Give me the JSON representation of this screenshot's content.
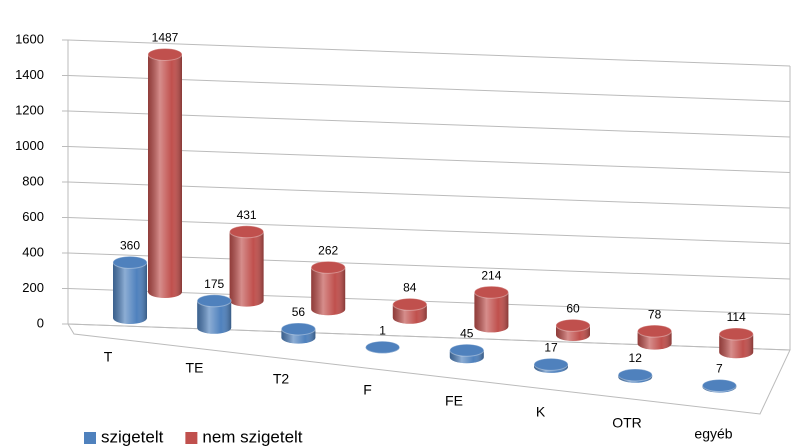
{
  "chart_data": {
    "type": "bar3d",
    "categories": [
      "T",
      "TE",
      "T2",
      "F",
      "FE",
      "K",
      "OTR",
      "egyéb"
    ],
    "series": [
      {
        "name": "szigetelt",
        "color": "#4f81bd",
        "values": [
          360,
          175,
          56,
          1,
          45,
          17,
          12,
          7
        ]
      },
      {
        "name": "nem szigetelt",
        "color": "#c0504d",
        "values": [
          1487,
          431,
          262,
          84,
          214,
          60,
          78,
          114
        ]
      }
    ],
    "ylim": [
      0,
      1600
    ],
    "yticks": [
      0,
      200,
      400,
      600,
      800,
      1000,
      1200,
      1400,
      1600
    ],
    "grid": true,
    "legend": "bottom-left"
  }
}
